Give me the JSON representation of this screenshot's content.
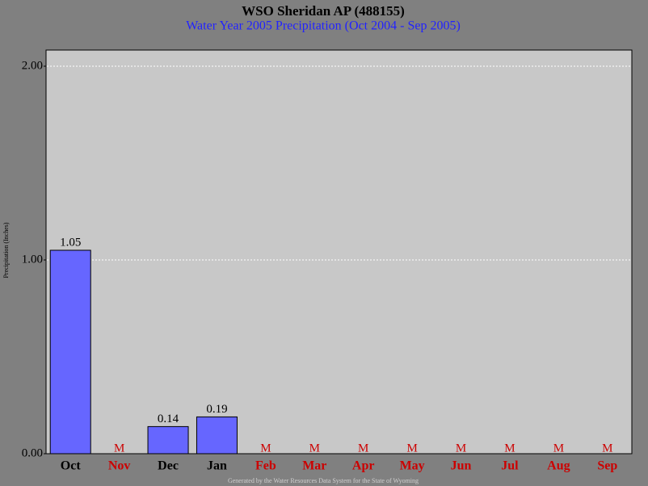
{
  "chart_data": {
    "type": "bar",
    "title": "WSO Sheridan AP (488155)",
    "subtitle": "Water Year 2005 Precipitation (Oct 2004 - Sep 2005)",
    "y_label": "Precipitation (Inches)",
    "footer": "Generated by the Water Resources Data System for the State of Wyoming",
    "categories": [
      "Oct",
      "Nov",
      "Dec",
      "Jan",
      "Feb",
      "Mar",
      "Apr",
      "May",
      "Jun",
      "Jul",
      "Aug",
      "Sep"
    ],
    "values": [
      1.05,
      null,
      0.14,
      0.19,
      null,
      null,
      null,
      null,
      null,
      null,
      null,
      null
    ],
    "value_labels": [
      "1.05",
      "M",
      "0.14",
      "0.19",
      "M",
      "M",
      "M",
      "M",
      "M",
      "M",
      "M",
      "M"
    ],
    "color": "#6666ff",
    "missing_color": "#cc0000",
    "ylim": [
      0,
      2.0833
    ],
    "yticks": [
      {
        "value": 0,
        "label": "0.00"
      },
      {
        "value": 1,
        "label": "1.00"
      },
      {
        "value": 2,
        "label": "2.00"
      }
    ],
    "grid": true
  }
}
